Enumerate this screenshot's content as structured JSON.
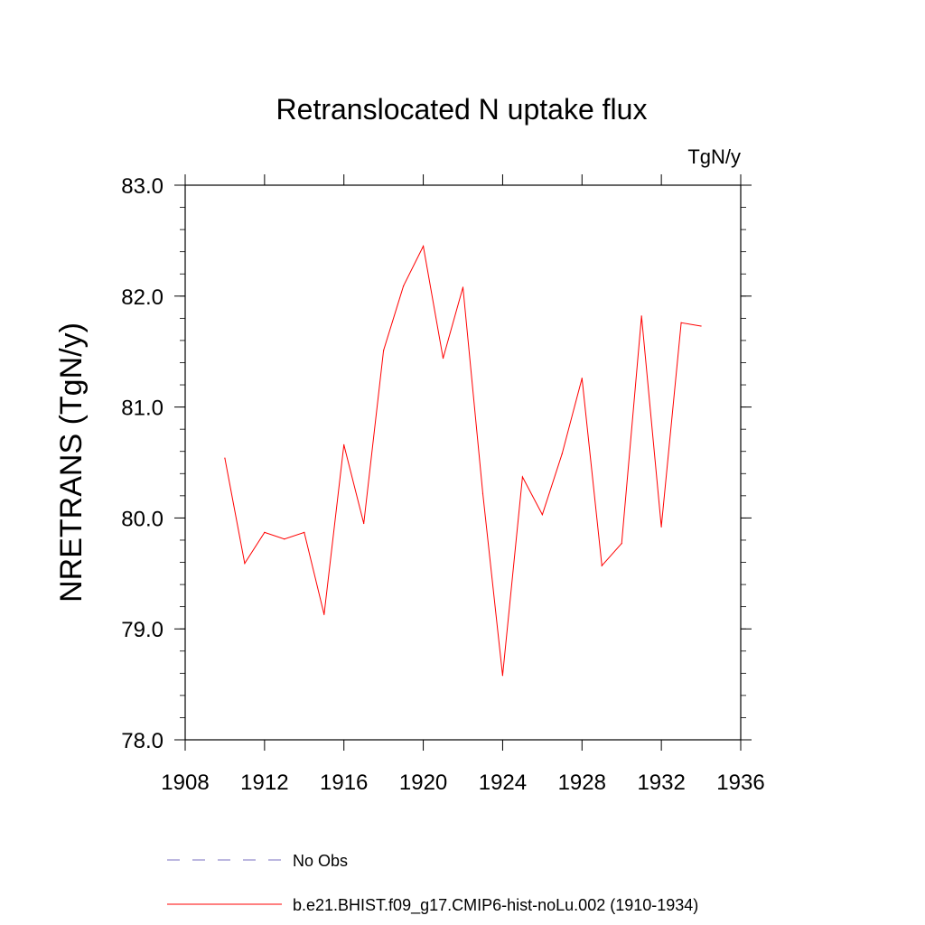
{
  "chart_data": {
    "type": "line",
    "title": "Retranslocated N uptake flux",
    "units_label": "TgN/y",
    "ylabel": "NRETRANS  (TgN/y)",
    "xlabel": "",
    "xlim": [
      1908,
      1936
    ],
    "ylim": [
      78.0,
      83.0
    ],
    "x_ticks": [
      1908,
      1912,
      1916,
      1920,
      1924,
      1928,
      1932,
      1936
    ],
    "y_ticks": [
      "78.0",
      "79.0",
      "80.0",
      "81.0",
      "82.0",
      "83.0"
    ],
    "grid": false,
    "legend_position": "bottom",
    "series": [
      {
        "name": "b.e21.BHIST.f09_g17.CMIP6-hist-noLu.002 (1910-1934)",
        "color": "#ff0000",
        "style": "solid",
        "x": [
          1910,
          1911,
          1912,
          1913,
          1914,
          1915,
          1916,
          1917,
          1918,
          1919,
          1920,
          1921,
          1922,
          1923,
          1924,
          1925,
          1926,
          1927,
          1928,
          1929,
          1930,
          1931,
          1932,
          1933,
          1934
        ],
        "values": [
          80.54,
          79.59,
          79.87,
          79.81,
          79.87,
          79.13,
          80.66,
          79.95,
          81.51,
          82.09,
          82.45,
          81.44,
          82.08,
          80.22,
          78.58,
          80.37,
          80.03,
          80.58,
          81.26,
          79.57,
          79.77,
          81.82,
          79.92,
          81.76,
          81.73
        ]
      }
    ],
    "legend": [
      {
        "label": "No Obs",
        "color": "#7a6fc0",
        "style": "dashed"
      },
      {
        "label": "b.e21.BHIST.f09_g17.CMIP6-hist-noLu.002 (1910-1934)",
        "color": "#ff0000",
        "style": "solid"
      }
    ]
  }
}
